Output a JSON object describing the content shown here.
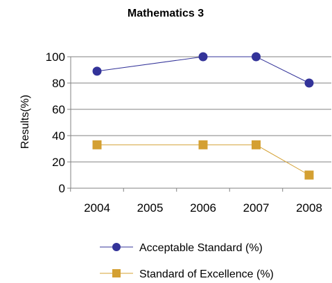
{
  "chart_data": {
    "type": "line",
    "title": "Mathematics 3",
    "xlabel": "",
    "ylabel": "Results(%)",
    "categories": [
      "2004",
      "2005",
      "2006",
      "2007",
      "2008"
    ],
    "ylim": [
      0,
      100
    ],
    "yticks": [
      0,
      20,
      40,
      60,
      80,
      100
    ],
    "grid": true,
    "legend_position": "bottom",
    "series": [
      {
        "name": "Acceptable Standard (%)",
        "values": [
          89,
          100,
          100,
          100,
          80
        ],
        "present": [
          true,
          false,
          true,
          true,
          true
        ],
        "color": "#333399",
        "marker": "circle"
      },
      {
        "name": "Standard of Excellence (%)",
        "values": [
          33,
          33,
          33,
          33,
          10
        ],
        "present": [
          true,
          false,
          true,
          true,
          true
        ],
        "color": "#D4A032",
        "marker": "square"
      }
    ]
  }
}
